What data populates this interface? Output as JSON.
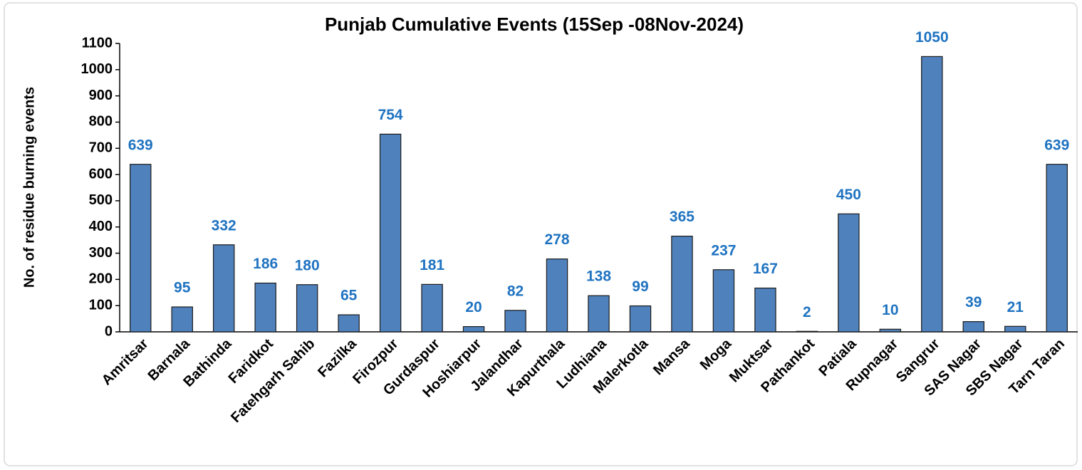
{
  "chart_data": {
    "type": "bar",
    "title": "Punjab Cumulative Events (15Sep -08Nov-2024)",
    "y_label": "No. of residue burning events",
    "categories": [
      "Amritsar",
      "Barnala",
      "Bathinda",
      "Faridkot",
      "Fatehgarh Sahib",
      "Fazilka",
      "Firozpur",
      "Gurdaspur",
      "Hoshiarpur",
      "Jalandhar",
      "Kapurthala",
      "Ludhiana",
      "Malerkotla",
      "Mansa",
      "Moga",
      "Muktsar",
      "Pathankot",
      "Patiala",
      "Rupnagar",
      "Sangrur",
      "SAS Nagar",
      "SBS Nagar",
      "Tarn Taran"
    ],
    "values": [
      639,
      95,
      332,
      186,
      180,
      65,
      754,
      181,
      20,
      82,
      278,
      138,
      99,
      365,
      237,
      167,
      2,
      450,
      10,
      1050,
      39,
      21,
      639
    ],
    "color": "#4f81bd",
    "label_color": "#1f73c1",
    "ylim": [
      0,
      1100
    ],
    "yticks": [
      0,
      100,
      200,
      300,
      400,
      500,
      600,
      700,
      800,
      900,
      1000,
      1100
    ],
    "grid": false
  }
}
